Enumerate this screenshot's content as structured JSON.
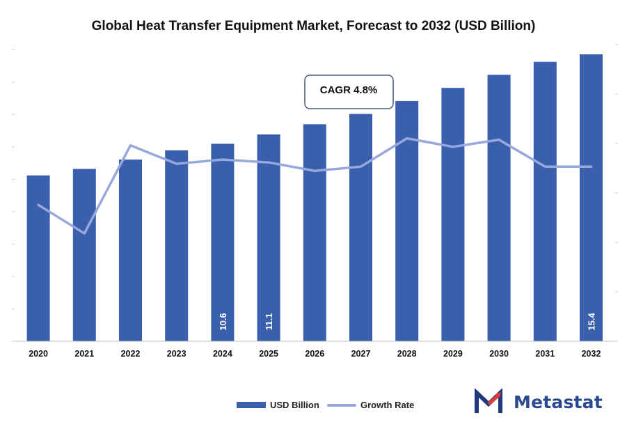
{
  "chart_data": {
    "type": "bar",
    "title": "Global Heat Transfer Equipment Market, Forecast to 2032 (USD Billion)",
    "categories": [
      "2020",
      "2021",
      "2022",
      "2023",
      "2024",
      "2025",
      "2026",
      "2027",
      "2028",
      "2029",
      "2030",
      "2031",
      "2032"
    ],
    "series": [
      {
        "name": "USD Billion",
        "type": "bar",
        "color": "#3a5fad",
        "values": [
          8.9,
          9.25,
          9.75,
          10.25,
          10.6,
          11.1,
          11.65,
          12.2,
          12.9,
          13.6,
          14.3,
          15.0,
          15.4
        ]
      },
      {
        "name": "Growth Rate",
        "type": "line",
        "color": "#96a8dc",
        "values": [
          4.8,
          3.8,
          6.9,
          6.25,
          6.4,
          6.3,
          6.0,
          6.15,
          7.15,
          6.85,
          7.1,
          6.15,
          6.15
        ]
      }
    ],
    "data_labels": [
      {
        "category": "2024",
        "text": "10.6"
      },
      {
        "category": "2025",
        "text": "11.1"
      },
      {
        "category": "2032",
        "text": "15.4"
      }
    ],
    "annotation": "CAGR 4.8%",
    "ylim": [
      0,
      16
    ],
    "y2lim": [
      0,
      10.5
    ],
    "grid": false,
    "legend": "bottom"
  },
  "brand": {
    "name": "Metastat",
    "color": "#2a4a8f",
    "accent": "#e03a3a"
  }
}
